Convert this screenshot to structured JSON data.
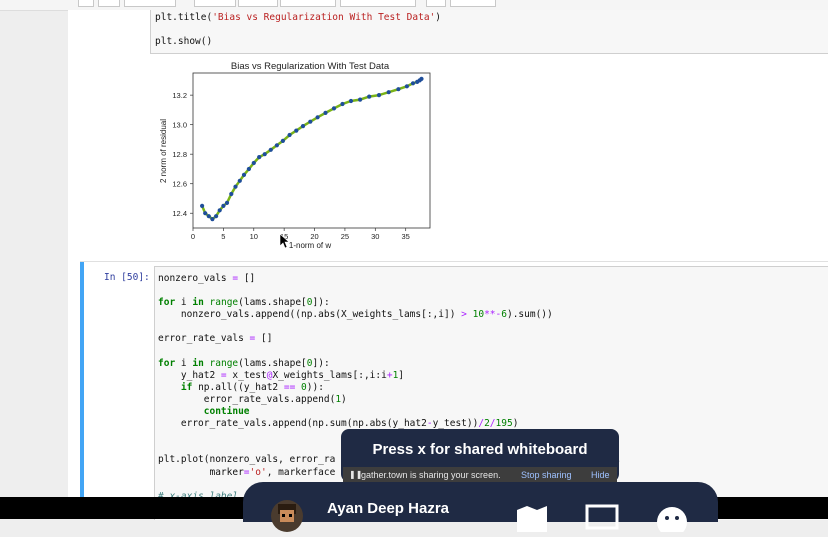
{
  "cell1": {
    "line1_a": "plt.title(",
    "line1_b": "'Bias vs Regularization With Test Data'",
    "line1_c": ")",
    "line2": "plt.show()"
  },
  "plot": {
    "title": "Bias vs Regularization With Test Data",
    "xlabel": "1-norm of w",
    "ylabel": "2 norm of residual",
    "xticks": [
      "0",
      "5",
      "10",
      "15",
      "20",
      "25",
      "30",
      "35"
    ],
    "yticks": [
      "12.4",
      "12.6",
      "12.8",
      "13.0",
      "13.2"
    ]
  },
  "chart_data": {
    "type": "line",
    "title": "Bias vs Regularization With Test Data",
    "xlabel": "1-norm of w",
    "ylabel": "2 norm of residual",
    "xlim": [
      0,
      39
    ],
    "ylim": [
      12.3,
      13.35
    ],
    "series": [
      {
        "x": [
          1.5,
          2.0,
          2.6,
          3.2,
          3.8,
          4.4,
          5.0,
          5.6,
          6.3,
          7.0,
          7.7,
          8.4,
          9.2,
          10.0,
          10.9,
          11.8,
          12.8,
          13.8,
          14.8,
          15.9,
          17.0,
          18.1,
          19.3,
          20.5,
          21.8,
          23.2,
          24.6,
          26.0,
          27.5,
          29.0,
          30.6,
          32.2,
          33.8,
          35.2,
          36.2,
          36.9,
          37.3,
          37.6
        ],
        "y": [
          12.45,
          12.4,
          12.38,
          12.36,
          12.38,
          12.42,
          12.45,
          12.47,
          12.53,
          12.58,
          12.62,
          12.66,
          12.7,
          12.74,
          12.78,
          12.8,
          12.83,
          12.86,
          12.89,
          12.93,
          12.96,
          12.99,
          13.02,
          13.05,
          13.08,
          13.11,
          13.14,
          13.16,
          13.17,
          13.19,
          13.2,
          13.22,
          13.24,
          13.26,
          13.28,
          13.29,
          13.3,
          13.31
        ]
      }
    ],
    "colors": {
      "points": "#1f4e9a",
      "line": "#7ab317"
    }
  },
  "cell2": {
    "prompt": "In [50]:"
  },
  "overlay": {
    "title": "Press x for shared whiteboard",
    "share_text": "gather.town is sharing your screen.",
    "stop_label": "Stop sharing",
    "hide_label": "Hide"
  },
  "user": {
    "name": "Ayan Deep Hazra"
  }
}
